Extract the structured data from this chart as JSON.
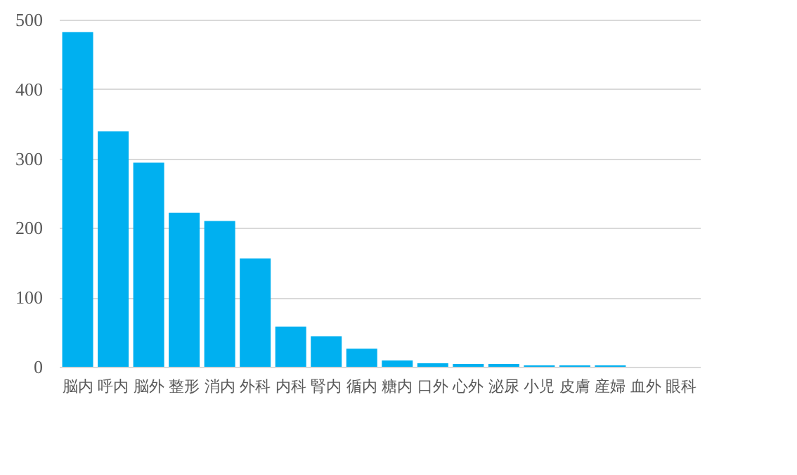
{
  "chart_data": {
    "type": "bar",
    "categories": [
      "脳内",
      "呼内",
      "脳外",
      "整形",
      "消内",
      "外科",
      "内科",
      "腎内",
      "循内",
      "糖内",
      "口外",
      "心外",
      "泌尿",
      "小児",
      "皮膚",
      "産婦",
      "血外",
      "眼科"
    ],
    "values": [
      482,
      339,
      294,
      222,
      210,
      156,
      58,
      44,
      26,
      9,
      5,
      4,
      4,
      2,
      2,
      2,
      0,
      0
    ],
    "color": "#00b0f0",
    "ylim": [
      0,
      500
    ],
    "yticks": [
      0,
      100,
      200,
      300,
      400,
      500
    ],
    "grid": "y"
  }
}
